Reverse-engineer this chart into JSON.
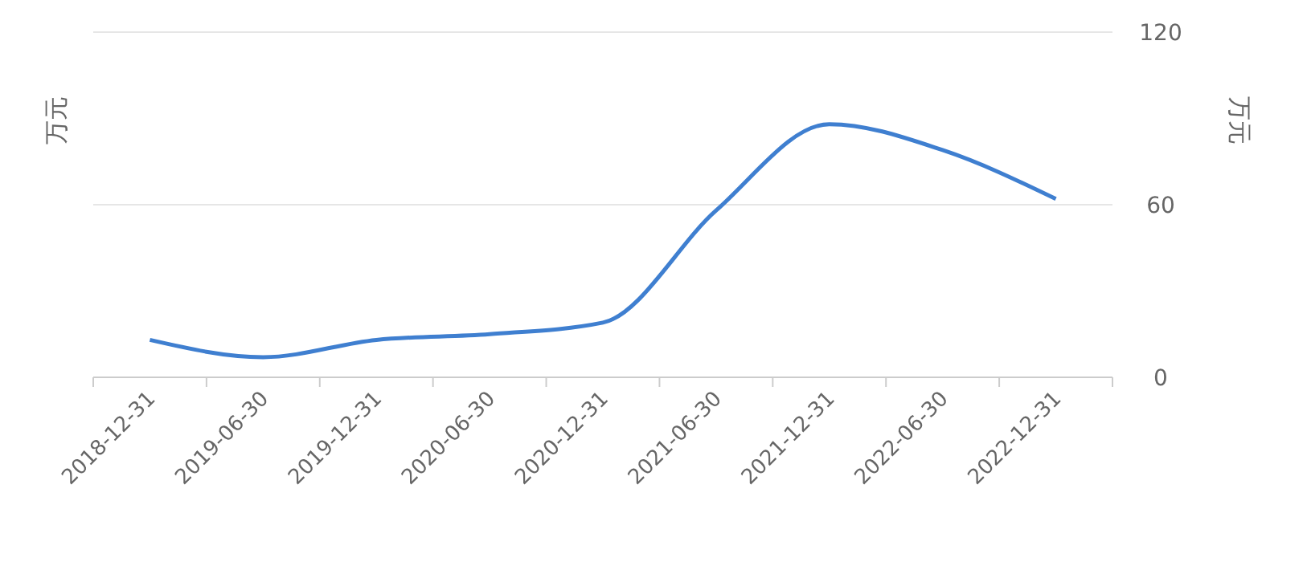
{
  "chart_data": {
    "type": "line",
    "ylabel": "万元",
    "y2label": "万元",
    "categories": [
      "2018-12-31",
      "2019-06-30",
      "2019-12-31",
      "2020-06-30",
      "2020-12-31",
      "2021-06-30",
      "2021-12-31",
      "2022-06-30",
      "2022-12-31"
    ],
    "series": [
      {
        "color": "#3f7fd0",
        "values": [
          13,
          7,
          13,
          15,
          19,
          58,
          88,
          79,
          62
        ]
      }
    ],
    "ylim": [
      0,
      120
    ],
    "yticks": [
      0,
      60,
      120
    ],
    "grid": "y",
    "marker": "none",
    "line_style": "solid"
  }
}
